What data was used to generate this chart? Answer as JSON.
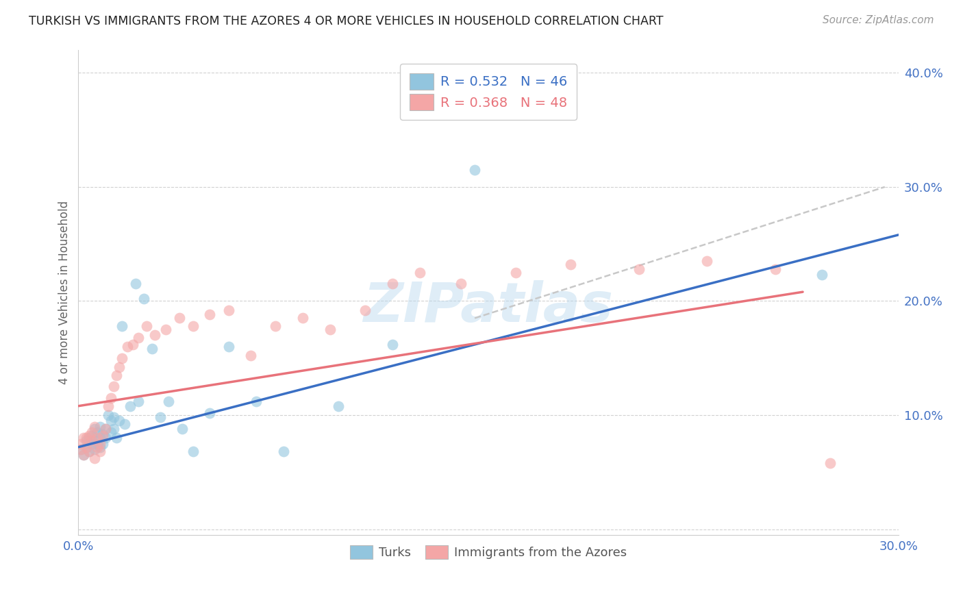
{
  "title": "TURKISH VS IMMIGRANTS FROM THE AZORES 4 OR MORE VEHICLES IN HOUSEHOLD CORRELATION CHART",
  "source": "Source: ZipAtlas.com",
  "ylabel": "4 or more Vehicles in Household",
  "xmin": 0.0,
  "xmax": 0.3,
  "ymin": -0.005,
  "ymax": 0.42,
  "yticks": [
    0.0,
    0.1,
    0.2,
    0.3,
    0.4
  ],
  "ytick_labels": [
    "",
    "10.0%",
    "20.0%",
    "30.0%",
    "40.0%"
  ],
  "xticks": [
    0.0,
    0.05,
    0.1,
    0.15,
    0.2,
    0.25,
    0.3
  ],
  "xtick_labels": [
    "0.0%",
    "",
    "",
    "",
    "",
    "",
    "30.0%"
  ],
  "legend_R_blue": "0.532",
  "legend_N_blue": "46",
  "legend_R_pink": "0.368",
  "legend_N_pink": "48",
  "blue_color": "#92c5de",
  "pink_color": "#f4a6a6",
  "blue_line_color": "#3a6fc4",
  "pink_line_color": "#e8727a",
  "dashed_line_color": "#c8c8c8",
  "watermark": "ZIPatlas",
  "turks_scatter_x": [
    0.001,
    0.002,
    0.003,
    0.003,
    0.004,
    0.004,
    0.005,
    0.005,
    0.006,
    0.006,
    0.006,
    0.007,
    0.007,
    0.008,
    0.008,
    0.008,
    0.009,
    0.009,
    0.01,
    0.01,
    0.011,
    0.012,
    0.012,
    0.013,
    0.013,
    0.014,
    0.015,
    0.016,
    0.017,
    0.019,
    0.021,
    0.022,
    0.024,
    0.027,
    0.03,
    0.033,
    0.038,
    0.042,
    0.048,
    0.055,
    0.065,
    0.075,
    0.095,
    0.115,
    0.145,
    0.272
  ],
  "turks_scatter_y": [
    0.07,
    0.065,
    0.072,
    0.078,
    0.068,
    0.08,
    0.075,
    0.082,
    0.07,
    0.078,
    0.088,
    0.074,
    0.085,
    0.072,
    0.08,
    0.09,
    0.075,
    0.083,
    0.08,
    0.088,
    0.1,
    0.085,
    0.095,
    0.088,
    0.098,
    0.08,
    0.095,
    0.178,
    0.092,
    0.108,
    0.215,
    0.112,
    0.202,
    0.158,
    0.098,
    0.112,
    0.088,
    0.068,
    0.102,
    0.16,
    0.112,
    0.068,
    0.108,
    0.162,
    0.315,
    0.223
  ],
  "azores_scatter_x": [
    0.001,
    0.001,
    0.002,
    0.002,
    0.003,
    0.003,
    0.004,
    0.004,
    0.005,
    0.005,
    0.006,
    0.006,
    0.007,
    0.007,
    0.008,
    0.008,
    0.009,
    0.01,
    0.011,
    0.012,
    0.013,
    0.014,
    0.015,
    0.016,
    0.018,
    0.02,
    0.022,
    0.025,
    0.028,
    0.032,
    0.037,
    0.042,
    0.048,
    0.055,
    0.063,
    0.072,
    0.082,
    0.092,
    0.105,
    0.115,
    0.125,
    0.14,
    0.16,
    0.18,
    0.205,
    0.23,
    0.255,
    0.275
  ],
  "azores_scatter_y": [
    0.07,
    0.075,
    0.065,
    0.08,
    0.072,
    0.08,
    0.068,
    0.082,
    0.078,
    0.085,
    0.062,
    0.09,
    0.072,
    0.08,
    0.068,
    0.075,
    0.082,
    0.088,
    0.108,
    0.115,
    0.125,
    0.135,
    0.142,
    0.15,
    0.16,
    0.162,
    0.168,
    0.178,
    0.17,
    0.175,
    0.185,
    0.178,
    0.188,
    0.192,
    0.152,
    0.178,
    0.185,
    0.175,
    0.192,
    0.215,
    0.225,
    0.215,
    0.225,
    0.232,
    0.228,
    0.235,
    0.228,
    0.058
  ],
  "blue_trendline_x": [
    0.0,
    0.3
  ],
  "blue_trendline_y": [
    0.072,
    0.258
  ],
  "pink_trendline_x": [
    0.0,
    0.265
  ],
  "pink_trendline_y": [
    0.108,
    0.208
  ],
  "dashed_trendline_x": [
    0.145,
    0.295
  ],
  "dashed_trendline_y": [
    0.185,
    0.3
  ]
}
